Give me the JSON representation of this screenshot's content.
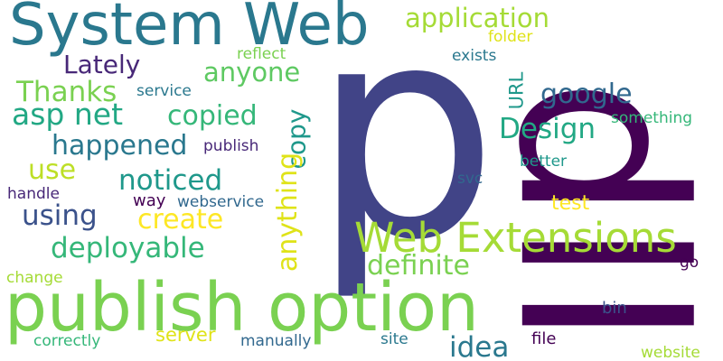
{
  "words": {
    "p": {
      "text": "p",
      "color": "#414487"
    },
    "dll": {
      "text": "dll",
      "color": "#440154"
    },
    "system_web": {
      "text": "System Web",
      "color": "#2a788e"
    },
    "publish_option": {
      "text": "publish option",
      "color": "#7ad151"
    },
    "web_extensions": {
      "text": "Web Extensions",
      "color": "#a5db36"
    },
    "application": {
      "text": "application",
      "color": "#a5db36"
    },
    "lately": {
      "text": "Lately",
      "color": "#482878"
    },
    "anyone": {
      "text": "anyone",
      "color": "#5ec962"
    },
    "thanks": {
      "text": "Thanks",
      "color": "#7ad151"
    },
    "asp_net": {
      "text": "asp net",
      "color": "#22a884"
    },
    "copied": {
      "text": "copied",
      "color": "#35b779"
    },
    "happened": {
      "text": "happened",
      "color": "#2a788e"
    },
    "copy": {
      "text": "copy",
      "color": "#1f988b"
    },
    "google": {
      "text": "google",
      "color": "#31688e"
    },
    "design": {
      "text": "Design",
      "color": "#22a884"
    },
    "url": {
      "text": "URL",
      "color": "#1f988b"
    },
    "use": {
      "text": "use",
      "color": "#bddf26"
    },
    "noticed": {
      "text": "noticed",
      "color": "#1f988b"
    },
    "anything": {
      "text": "anything",
      "color": "#dfe318"
    },
    "create": {
      "text": "create",
      "color": "#fde725"
    },
    "using": {
      "text": "using",
      "color": "#3b528b"
    },
    "deployable": {
      "text": "deployable",
      "color": "#35b779"
    },
    "definite": {
      "text": "definite",
      "color": "#7ad151"
    },
    "idea": {
      "text": "idea",
      "color": "#2a788e"
    },
    "server": {
      "text": "server",
      "color": "#dfe318"
    },
    "reflect": {
      "text": "reflect",
      "color": "#7ad151"
    },
    "folder": {
      "text": "folder",
      "color": "#dfe318"
    },
    "exists": {
      "text": "exists",
      "color": "#2a788e"
    },
    "service": {
      "text": "service",
      "color": "#2a788e"
    },
    "something": {
      "text": "something",
      "color": "#35b779"
    },
    "publish": {
      "text": "publish",
      "color": "#482878"
    },
    "handle": {
      "text": "handle",
      "color": "#482878"
    },
    "way": {
      "text": "way",
      "color": "#440154"
    },
    "webservice": {
      "text": "webservice",
      "color": "#31688e"
    },
    "test": {
      "text": "test",
      "color": "#fde725"
    },
    "better": {
      "text": "better",
      "color": "#1f988b"
    },
    "svc": {
      "text": "svc",
      "color": "#31688e"
    },
    "go": {
      "text": "go",
      "color": "#440154"
    },
    "change": {
      "text": "change",
      "color": "#a5db36"
    },
    "bin": {
      "text": "bin",
      "color": "#3b528b"
    },
    "correctly": {
      "text": "correctly",
      "color": "#35b779"
    },
    "manually": {
      "text": "manually",
      "color": "#31688e"
    },
    "site": {
      "text": "site",
      "color": "#2a788e"
    },
    "file": {
      "text": "file",
      "color": "#440154"
    },
    "website": {
      "text": "website",
      "color": "#a5db36"
    }
  }
}
